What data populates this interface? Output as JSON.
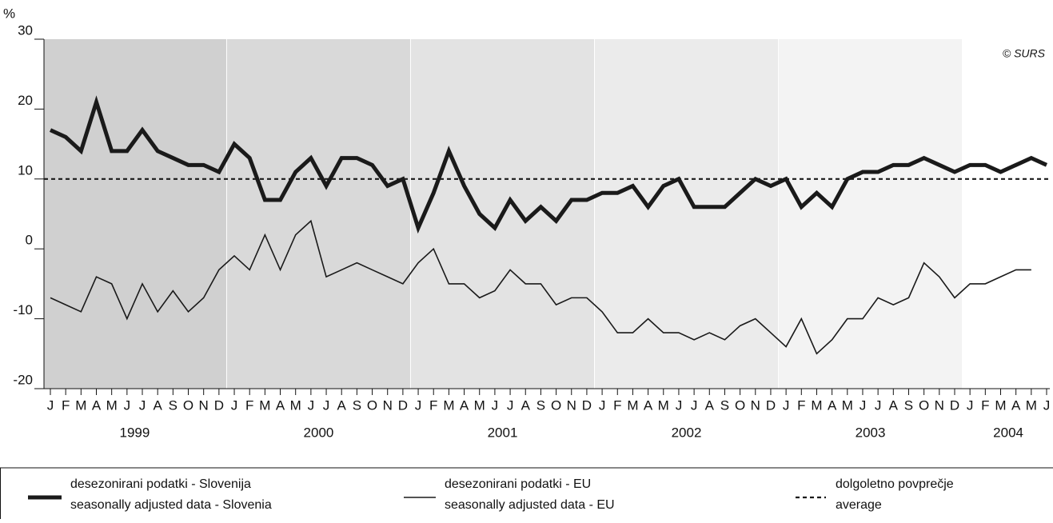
{
  "chart_data": {
    "type": "line",
    "y_label": "%",
    "annotation": "© SURS",
    "ylim": [
      -20,
      30
    ],
    "yticks": [
      -20,
      -10,
      0,
      10,
      20,
      30
    ],
    "categories": [
      "J",
      "F",
      "M",
      "A",
      "M",
      "J",
      "J",
      "A",
      "S",
      "O",
      "N",
      "D",
      "J",
      "F",
      "M",
      "A",
      "M",
      "J",
      "J",
      "A",
      "S",
      "O",
      "N",
      "D",
      "J",
      "F",
      "M",
      "A",
      "M",
      "J",
      "J",
      "A",
      "S",
      "O",
      "N",
      "D",
      "J",
      "F",
      "M",
      "A",
      "M",
      "J",
      "J",
      "A",
      "S",
      "O",
      "N",
      "D",
      "J",
      "F",
      "M",
      "A",
      "M",
      "J",
      "J",
      "A",
      "S",
      "O",
      "N",
      "D",
      "J",
      "F",
      "M",
      "A",
      "M",
      "J"
    ],
    "years": [
      "1999",
      "2000",
      "2001",
      "2002",
      "2003",
      "2004"
    ],
    "series": [
      {
        "name": "desezonirani podatki - Slovenija",
        "name_en": "seasonally adjusted data - Slovenia",
        "color": "#1a1a1a",
        "width": 5,
        "values": [
          17,
          16,
          14,
          21,
          14,
          14,
          17,
          14,
          13,
          12,
          12,
          11,
          15,
          13,
          7,
          7,
          11,
          13,
          9,
          13,
          13,
          12,
          9,
          10,
          3,
          8,
          14,
          9,
          5,
          3,
          7,
          4,
          6,
          4,
          7,
          7,
          8,
          8,
          9,
          6,
          9,
          10,
          6,
          6,
          6,
          8,
          10,
          9,
          10,
          6,
          8,
          6,
          10,
          11,
          11,
          12,
          12,
          13,
          12,
          11,
          12,
          12,
          11,
          12,
          13,
          12
        ]
      },
      {
        "name": "desezonirani podatki - EU",
        "name_en": "seasonally adjusted data - EU",
        "color": "#1a1a1a",
        "width": 1.6,
        "values": [
          -7,
          -8,
          -9,
          -4,
          -5,
          -10,
          -5,
          -9,
          -6,
          -9,
          -7,
          -3,
          -1,
          -3,
          2,
          -3,
          2,
          4,
          -4,
          -3,
          -2,
          -3,
          -4,
          -5,
          -2,
          0,
          -5,
          -5,
          -7,
          -6,
          -3,
          -5,
          -5,
          -8,
          -7,
          -7,
          -9,
          -12,
          -12,
          -10,
          -12,
          -12,
          -13,
          -12,
          -13,
          -11,
          -10,
          -12,
          -14,
          -10,
          -15,
          -13,
          -10,
          -10,
          -7,
          -8,
          -7,
          -2,
          -4,
          -7,
          -5,
          -5,
          -4,
          -3,
          -3,
          null
        ]
      }
    ],
    "average": {
      "value": 10,
      "name": "dolgoletno povprečje",
      "name_en": "average",
      "color": "#1a1a1a"
    }
  }
}
